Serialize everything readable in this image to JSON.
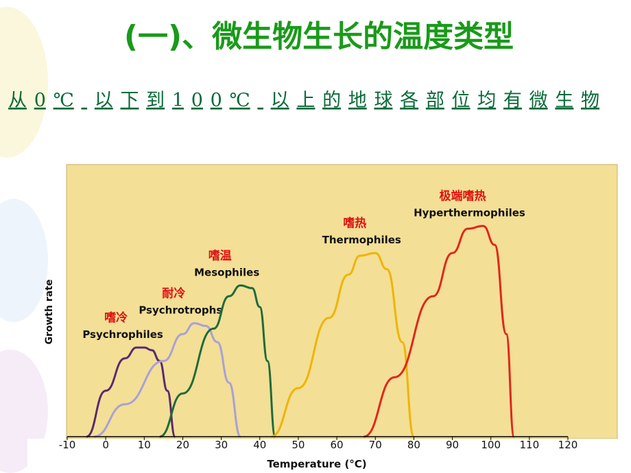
{
  "header": {
    "title": "(一)、微生物生长的温度类型",
    "subtitle": "从0℃ 以下到100℃ 以上的地球各部位均有微生物"
  },
  "chart_data": {
    "type": "line",
    "xlabel": "Temperature (°C)",
    "ylabel": "Growth rate",
    "xlim": [
      -10,
      120
    ],
    "xticks": [
      -10,
      0,
      10,
      20,
      30,
      40,
      50,
      60,
      70,
      80,
      90,
      100,
      110,
      120
    ],
    "ylim": [
      0,
      100
    ],
    "annotations": [
      "嗜冷",
      "耐冷",
      "嗜温",
      "嗜热",
      "极端嗜热"
    ],
    "series": [
      {
        "name": "Psychrophiles",
        "color": "#5a2a6e",
        "x": [
          -5,
          0,
          5,
          8,
          10,
          12,
          14,
          16,
          18
        ],
        "values": [
          0,
          17,
          29,
          33,
          33,
          32,
          28,
          17,
          0
        ]
      },
      {
        "name": "Psychrotrophs",
        "color": "#a9a0d8",
        "x": [
          -3,
          5,
          15,
          20,
          23,
          26,
          29,
          32,
          35
        ],
        "values": [
          0,
          12,
          28,
          38,
          42,
          41,
          35,
          20,
          0
        ]
      },
      {
        "name": "Mesophiles",
        "color": "#1f6b3a",
        "x": [
          14,
          20,
          28,
          32,
          35,
          38,
          40,
          42,
          44
        ],
        "values": [
          0,
          16,
          40,
          52,
          56,
          55,
          48,
          28,
          0
        ]
      },
      {
        "name": "Thermophiles",
        "color": "#f0b400",
        "x": [
          43,
          50,
          58,
          63,
          66,
          70,
          73,
          77,
          80
        ],
        "values": [
          0,
          18,
          44,
          60,
          67,
          68,
          62,
          35,
          0
        ]
      },
      {
        "name": "Hyperthermophiles",
        "color": "#e2261c",
        "x": [
          67,
          75,
          85,
          90,
          94,
          98,
          101,
          104,
          106
        ],
        "values": [
          0,
          22,
          52,
          68,
          77,
          78,
          71,
          38,
          0
        ]
      }
    ]
  }
}
